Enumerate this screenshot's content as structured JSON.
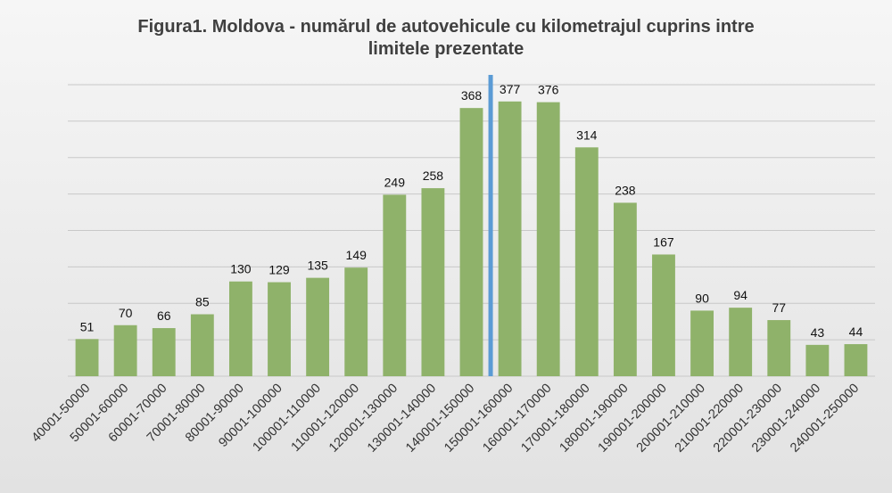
{
  "chart_data": {
    "type": "bar",
    "title_lines": [
      "Figura1. Moldova - numărul de autovehicule cu kilometrajul cuprins intre",
      "limitele prezentate"
    ],
    "xlabel": "",
    "ylabel": "",
    "ylim": [
      0,
      400
    ],
    "grid": true,
    "legend": "none",
    "bar_color": "#8fb26a",
    "marker_color": "#5b9bd5",
    "marker_between": [
      "140001-150000",
      "150001-160000"
    ],
    "categories": [
      "40001-50000",
      "50001-60000",
      "60001-70000",
      "70001-80000",
      "80001-90000",
      "90001-100000",
      "100001-110000",
      "110001-120000",
      "120001-130000",
      "130001-140000",
      "140001-150000",
      "150001-160000",
      "160001-170000",
      "170001-180000",
      "180001-190000",
      "190001-200000",
      "200001-210000",
      "210001-220000",
      "220001-230000",
      "230001-240000",
      "240001-250000"
    ],
    "values": [
      51,
      70,
      66,
      85,
      130,
      129,
      135,
      149,
      249,
      258,
      368,
      377,
      376,
      314,
      238,
      167,
      90,
      94,
      77,
      43,
      44
    ]
  }
}
